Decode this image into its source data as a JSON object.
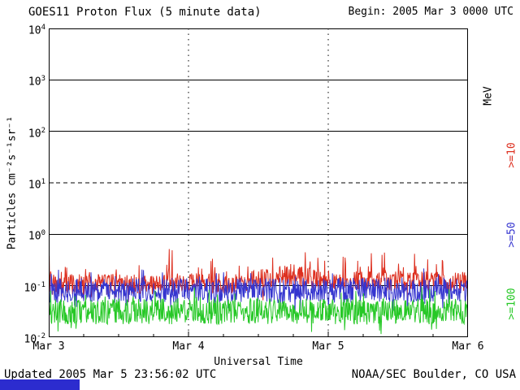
{
  "header": {
    "title": "GOES11 Proton Flux (5 minute data)",
    "begin_label": "Begin: 2005 Mar 3 0000 UTC"
  },
  "footer": {
    "updated": "Updated 2005 Mar  5 23:56:02 UTC",
    "source": "NOAA/SEC Boulder, CO USA"
  },
  "decor": {
    "bottom_bar_color": "#2c2ccf"
  },
  "chart_data": {
    "type": "line",
    "title": "GOES11 Proton Flux (5 minute data)",
    "xlabel": "Universal Time",
    "ylabel": "Particles cm⁻²s⁻¹sr⁻¹",
    "right_axis_label": "MeV",
    "x_ticks": [
      "Mar 3",
      "Mar 4",
      "Mar 5",
      "Mar 6"
    ],
    "x_range_days": 3,
    "y_log_range": [
      -2,
      4
    ],
    "y_tick_exponents": [
      4,
      3,
      2,
      1,
      0,
      -1,
      -2
    ],
    "grid": {
      "hlines": [
        {
          "exp": 3,
          "style": "solid"
        },
        {
          "exp": 2,
          "style": "solid"
        },
        {
          "exp": 1,
          "style": "dashed"
        },
        {
          "exp": 0,
          "style": "solid"
        },
        {
          "exp": -1,
          "style": "solid"
        }
      ],
      "vlines": [
        {
          "day": 1,
          "style": "dotted"
        },
        {
          "day": 2,
          "style": "dotted"
        }
      ]
    },
    "legend_position": "right-rotated",
    "samples_per_series": 864,
    "sample_interval_minutes": 5,
    "series": [
      {
        "name": ">=10",
        "color": "#dd2f1f",
        "approx_level_log10": -0.95,
        "trend": [
          [
            0,
            -0.98
          ],
          [
            0.45,
            -0.95
          ],
          [
            0.57,
            -0.8
          ],
          [
            0.68,
            -0.9
          ],
          [
            1,
            -0.93
          ]
        ],
        "noise": 0.4,
        "spike_prob": 0.1,
        "spike": 0.5,
        "min": -1.42,
        "max": -0.26
      },
      {
        "name": ">=50",
        "color": "#3535cf",
        "approx_level_log10": -1.1,
        "trend": [
          [
            0,
            -1.1
          ],
          [
            1,
            -1.08
          ]
        ],
        "noise": 0.48,
        "spike_prob": 0.06,
        "spike": 0.38,
        "min": -1.62,
        "max": -0.55
      },
      {
        "name": ">=100",
        "color": "#26c826",
        "approx_level_log10": -1.5,
        "trend": [
          [
            0,
            -1.5
          ],
          [
            1,
            -1.5
          ]
        ],
        "noise": 0.5,
        "spike_prob": 0.05,
        "spike": 0.32,
        "min": -1.95,
        "max": -1.0
      }
    ]
  }
}
